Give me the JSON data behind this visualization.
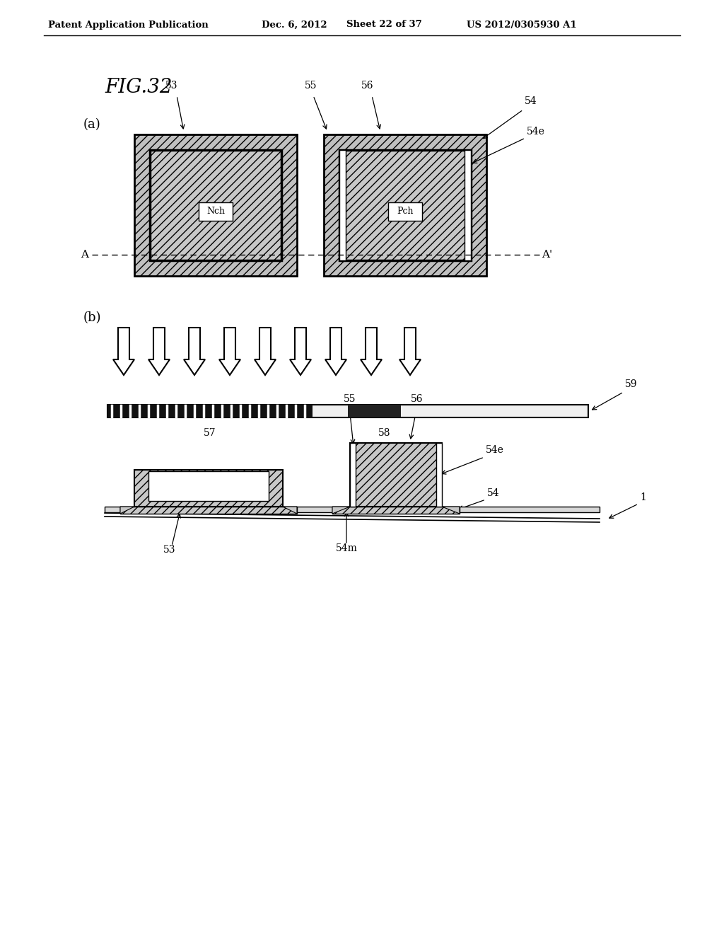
{
  "bg_color": "#ffffff",
  "header_text": "Patent Application Publication",
  "header_date": "Dec. 6, 2012",
  "header_sheet": "Sheet 22 of 37",
  "header_patent": "US 2012/0305930 A1",
  "fig_label": "FIG.32",
  "part_a_label": "(a)",
  "part_b_label": "(b)",
  "hatch_color": "#aaaaaa",
  "black": "#000000",
  "white": "#ffffff",
  "light_gray": "#d0d0d0",
  "dark_black": "#111111"
}
